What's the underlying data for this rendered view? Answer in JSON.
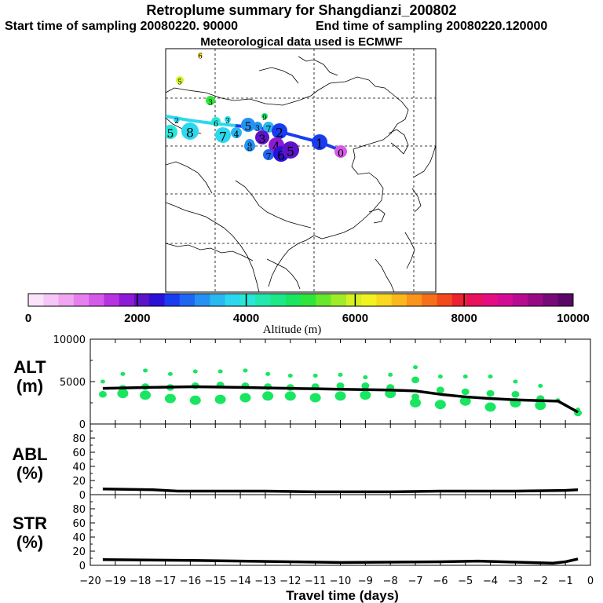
{
  "header": {
    "title": "Retroplume summary for Shangdianzi_200802",
    "start": "Start time of sampling 20080220. 90000",
    "end": "End time of sampling 20080220.120000",
    "met": "Meteorological data used is ECMWF"
  },
  "colorbar": {
    "label": "Altitude (m)",
    "ticks": [
      "0",
      "2000",
      "4000",
      "6000",
      "8000",
      "10000"
    ],
    "colors": [
      "#fbe3fb",
      "#f6c6f6",
      "#f0a6f0",
      "#e680ee",
      "#d65ae8",
      "#b833e0",
      "#8d1ad6",
      "#5d13c6",
      "#2b10d6",
      "#1a3cf0",
      "#1f66f2",
      "#2592f2",
      "#29b8f0",
      "#2cd8ee",
      "#29e6d8",
      "#22e8b0",
      "#1ce88a",
      "#18e660",
      "#2ee63a",
      "#66e82c",
      "#a0ec28",
      "#d6f024",
      "#f2f222",
      "#f8d820",
      "#fab81e",
      "#fa941c",
      "#f6701a",
      "#f24a1c",
      "#ec2230",
      "#e8125e",
      "#e40e82",
      "#d40c94",
      "#b80c90",
      "#980a84",
      "#780a78",
      "#5a0866"
    ]
  },
  "map": {
    "markers": [
      {
        "label": "6",
        "color": "#f8d820"
      },
      {
        "label": "5",
        "color": "#d6f024"
      },
      {
        "label": "3",
        "color": "#2ee63a"
      },
      {
        "label": "9",
        "color": "#18e660"
      },
      {
        "label": "2",
        "color": "#2cd8ee"
      },
      {
        "label": "5",
        "color": "#29e6d8"
      },
      {
        "label": "8",
        "color": "#2cd8ee"
      },
      {
        "label": "6",
        "color": "#29e6d8"
      },
      {
        "label": "3",
        "color": "#2cd8ee"
      },
      {
        "label": "7",
        "color": "#2cd8ee"
      },
      {
        "label": "4",
        "color": "#29b8f0"
      },
      {
        "label": "5",
        "color": "#2592f2"
      },
      {
        "label": "3",
        "color": "#2592f2"
      },
      {
        "label": "7",
        "color": "#29b8f0"
      },
      {
        "label": "2",
        "color": "#1a3cf0"
      },
      {
        "label": "8",
        "color": "#2592f2"
      },
      {
        "label": "3",
        "color": "#5d13c6"
      },
      {
        "label": "9",
        "color": "#2592f2"
      },
      {
        "label": "4",
        "color": "#8d1ad6"
      },
      {
        "label": "7",
        "color": "#1f66f2"
      },
      {
        "label": "6",
        "color": "#2b10d6"
      },
      {
        "label": "5",
        "color": "#5d13c6"
      },
      {
        "label": "1",
        "color": "#1a3cf0"
      },
      {
        "label": "0",
        "color": "#d65ae8"
      }
    ]
  },
  "chart_data": [
    {
      "type": "line",
      "title": "ALT",
      "ylabel": "ALT (m)",
      "xlabel": "Travel time (days)",
      "xlim": [
        -20,
        0
      ],
      "ylim": [
        0,
        10000
      ],
      "yticks": [
        "0",
        "5000",
        "10000"
      ],
      "x": [
        -19.5,
        -18.7,
        -17.8,
        -16.8,
        -15.8,
        -14.8,
        -13.8,
        -12.9,
        -12,
        -11,
        -10,
        -9,
        -8,
        -7,
        -6,
        -5,
        -4,
        -3,
        -2,
        -1.3,
        -0.5
      ],
      "series": [
        {
          "name": "mean altitude",
          "values": [
            4200,
            4250,
            4300,
            4350,
            4400,
            4350,
            4300,
            4250,
            4200,
            4150,
            4100,
            4050,
            4000,
            3900,
            3500,
            3200,
            3000,
            2850,
            2750,
            2700,
            1400
          ]
        }
      ],
      "scatter_clusters": [
        {
          "x": -19.5,
          "values": [
            5000,
            3500
          ]
        },
        {
          "x": -18.7,
          "values": [
            5900,
            4200,
            3600
          ]
        },
        {
          "x": -17.8,
          "values": [
            6300,
            4400,
            3400
          ]
        },
        {
          "x": -16.8,
          "values": [
            5900,
            4300,
            3000
          ]
        },
        {
          "x": -15.8,
          "values": [
            6200,
            4500,
            2800
          ]
        },
        {
          "x": -14.8,
          "values": [
            6200,
            4600,
            2900
          ]
        },
        {
          "x": -13.8,
          "values": [
            6300,
            4500,
            3100
          ]
        },
        {
          "x": -12.9,
          "values": [
            5900,
            4400,
            3300
          ]
        },
        {
          "x": -12,
          "values": [
            5700,
            4300,
            3300
          ]
        },
        {
          "x": -11,
          "values": [
            5700,
            4400,
            3100
          ]
        },
        {
          "x": -10,
          "values": [
            5800,
            4500,
            3300
          ]
        },
        {
          "x": -9,
          "values": [
            5500,
            4500,
            3400
          ]
        },
        {
          "x": -8,
          "values": [
            5800,
            4300,
            3600
          ]
        },
        {
          "x": -7,
          "values": [
            6700,
            5200,
            3200,
            2500
          ]
        },
        {
          "x": -6,
          "values": [
            5600,
            4000,
            2300
          ]
        },
        {
          "x": -5,
          "values": [
            5600,
            3800,
            2700
          ]
        },
        {
          "x": -4,
          "values": [
            5600,
            3600,
            2000
          ]
        },
        {
          "x": -3,
          "values": [
            5000,
            3500,
            2500
          ]
        },
        {
          "x": -2,
          "values": [
            4500,
            3000,
            2200
          ]
        },
        {
          "x": -1.3,
          "values": [
            2800
          ]
        },
        {
          "x": -0.5,
          "values": [
            1700,
            1300
          ]
        }
      ]
    },
    {
      "type": "line",
      "title": "ABL",
      "ylabel": "ABL (%)",
      "xlim": [
        -20,
        0
      ],
      "ylim": [
        0,
        100
      ],
      "yticks": [
        "0",
        "20",
        "40",
        "60",
        "80"
      ],
      "x": [
        -19.5,
        -17.5,
        -16.5,
        -13,
        -11,
        -8,
        -6,
        -3,
        -1,
        -0.5
      ],
      "series": [
        {
          "name": "ABL",
          "values": [
            8,
            7,
            5,
            5,
            4,
            4,
            5,
            5,
            6,
            7
          ]
        }
      ]
    },
    {
      "type": "line",
      "title": "STR",
      "ylabel": "STR (%)",
      "xlim": [
        -20,
        0
      ],
      "ylim": [
        0,
        100
      ],
      "yticks": [
        "0",
        "20",
        "40",
        "60",
        "80"
      ],
      "x": [
        -19.5,
        -16,
        -12,
        -10,
        -6,
        -4.5,
        -2.5,
        -1.5,
        -1,
        -0.5
      ],
      "series": [
        {
          "name": "STR",
          "values": [
            8,
            7,
            5,
            4,
            5,
            6,
            4,
            3,
            5,
            9
          ]
        }
      ]
    }
  ],
  "xaxis": {
    "ticks": [
      "-20",
      "-19",
      "-18",
      "-17",
      "-16",
      "-15",
      "-14",
      "-13",
      "-12",
      "-11",
      "-10",
      "-9",
      "-8",
      "-7",
      "-6",
      "-5",
      "-4",
      "-3",
      "-2",
      "-1",
      "0"
    ],
    "label": "Travel time (days)"
  },
  "panels": {
    "alt_label": "ALT\n(m)",
    "abl_label": "ABL\n(%)",
    "str_label": "STR\n(%)"
  }
}
